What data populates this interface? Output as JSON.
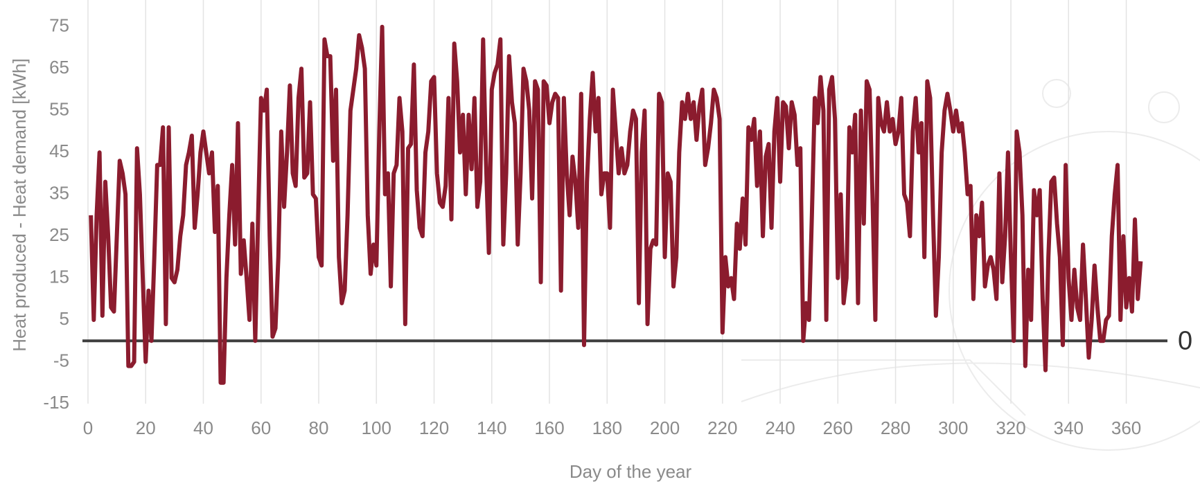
{
  "chart_data": {
    "type": "line",
    "xlabel": "Day of the year",
    "ylabel": "Heat produced - Heat demand [kWh]",
    "x": [
      1,
      2,
      3,
      4,
      5,
      6,
      7,
      8,
      9,
      10,
      11,
      12,
      13,
      14,
      15,
      16,
      17,
      18,
      19,
      20,
      21,
      22,
      23,
      24,
      25,
      26,
      27,
      28,
      29,
      30,
      31,
      32,
      33,
      34,
      35,
      36,
      37,
      38,
      39,
      40,
      41,
      42,
      43,
      44,
      45,
      46,
      47,
      48,
      49,
      50,
      51,
      52,
      53,
      54,
      55,
      56,
      57,
      58,
      59,
      60,
      61,
      62,
      63,
      64,
      65,
      66,
      67,
      68,
      69,
      70,
      71,
      72,
      73,
      74,
      75,
      76,
      77,
      78,
      79,
      80,
      81,
      82,
      83,
      84,
      85,
      86,
      87,
      88,
      89,
      90,
      91,
      92,
      93,
      94,
      95,
      96,
      97,
      98,
      99,
      100,
      101,
      102,
      103,
      104,
      105,
      106,
      107,
      108,
      109,
      110,
      111,
      112,
      113,
      114,
      115,
      116,
      117,
      118,
      119,
      120,
      121,
      122,
      123,
      124,
      125,
      126,
      127,
      128,
      129,
      130,
      131,
      132,
      133,
      134,
      135,
      136,
      137,
      138,
      139,
      140,
      141,
      142,
      143,
      144,
      145,
      146,
      147,
      148,
      149,
      150,
      151,
      152,
      153,
      154,
      155,
      156,
      157,
      158,
      159,
      160,
      161,
      162,
      163,
      164,
      165,
      166,
      167,
      168,
      169,
      170,
      171,
      172,
      173,
      174,
      175,
      176,
      177,
      178,
      179,
      180,
      181,
      182,
      183,
      184,
      185,
      186,
      187,
      188,
      189,
      190,
      191,
      192,
      193,
      194,
      195,
      196,
      197,
      198,
      199,
      200,
      201,
      202,
      203,
      204,
      205,
      206,
      207,
      208,
      209,
      210,
      211,
      212,
      213,
      214,
      215,
      216,
      217,
      218,
      219,
      220,
      221,
      222,
      223,
      224,
      225,
      226,
      227,
      228,
      229,
      230,
      231,
      232,
      233,
      234,
      235,
      236,
      237,
      238,
      239,
      240,
      241,
      242,
      243,
      244,
      245,
      246,
      247,
      248,
      249,
      250,
      251,
      252,
      253,
      254,
      255,
      256,
      257,
      258,
      259,
      260,
      261,
      262,
      263,
      264,
      265,
      266,
      267,
      268,
      269,
      270,
      271,
      272,
      273,
      274,
      275,
      276,
      277,
      278,
      279,
      280,
      281,
      282,
      283,
      284,
      285,
      286,
      287,
      288,
      289,
      290,
      291,
      292,
      293,
      294,
      295,
      296,
      297,
      298,
      299,
      300,
      301,
      302,
      303,
      304,
      305,
      306,
      307,
      308,
      309,
      310,
      311,
      312,
      313,
      314,
      315,
      316,
      317,
      318,
      319,
      320,
      321,
      322,
      323,
      324,
      325,
      326,
      327,
      328,
      329,
      330,
      331,
      332,
      333,
      334,
      335,
      336,
      337,
      338,
      339,
      340,
      341,
      342,
      343,
      344,
      345,
      346,
      347,
      348,
      349,
      350,
      351,
      352,
      353,
      354,
      355,
      356,
      357,
      358,
      359,
      360,
      361,
      362,
      363,
      364,
      365
    ],
    "series": [
      {
        "color": "#8b1c2e",
        "values": [
          30,
          5,
          30,
          45,
          6,
          38,
          25,
          8,
          7,
          25,
          43,
          40,
          35,
          -6,
          -6,
          -5,
          46,
          35,
          15,
          -5,
          12,
          0,
          20,
          42,
          42,
          51,
          4,
          51,
          15,
          14,
          17,
          25,
          30,
          42,
          45,
          49,
          27,
          35,
          45,
          50,
          45,
          40,
          45,
          26,
          37,
          -10,
          -10,
          15,
          30,
          42,
          23,
          52,
          16,
          24,
          15,
          5,
          28,
          0,
          30,
          58,
          55,
          60,
          25,
          1,
          3,
          20,
          50,
          32,
          45,
          61,
          40,
          37,
          58,
          65,
          39,
          40,
          57,
          35,
          34,
          20,
          18,
          72,
          68,
          68,
          43,
          60,
          20,
          9,
          12,
          30,
          55,
          60,
          65,
          73,
          70,
          65,
          30,
          16,
          23,
          18,
          50,
          75,
          35,
          40,
          13,
          40,
          42,
          58,
          50,
          4,
          46,
          47,
          66,
          36,
          27,
          25,
          45,
          50,
          62,
          63,
          40,
          33,
          32,
          37,
          58,
          29,
          71,
          62,
          45,
          54,
          35,
          54,
          41,
          58,
          32,
          38,
          72,
          43,
          21,
          60,
          64,
          66,
          72,
          23,
          40,
          68,
          57,
          52,
          23,
          40,
          65,
          62,
          55,
          34,
          62,
          60,
          14,
          62,
          61,
          52,
          57,
          59,
          58,
          12,
          58,
          40,
          30,
          44,
          38,
          27,
          59,
          -1,
          38,
          53,
          64,
          50,
          58,
          35,
          40,
          40,
          27,
          60,
          50,
          40,
          46,
          40,
          42,
          50,
          55,
          53,
          9,
          45,
          55,
          4,
          22,
          24,
          23,
          59,
          57,
          20,
          40,
          38,
          13,
          20,
          45,
          57,
          53,
          59,
          53,
          57,
          48,
          56,
          60,
          42,
          46,
          52,
          60,
          58,
          53,
          2,
          20,
          13,
          15,
          10,
          28,
          22,
          34,
          23,
          51,
          48,
          53,
          37,
          50,
          25,
          44,
          47,
          27,
          50,
          58,
          38,
          57,
          56,
          46,
          57,
          54,
          42,
          46,
          0,
          9,
          5,
          30,
          58,
          52,
          63,
          55,
          5,
          60,
          63,
          53,
          15,
          35,
          9,
          15,
          51,
          45,
          54,
          9,
          55,
          28,
          62,
          60,
          35,
          5,
          58,
          52,
          50,
          57,
          50,
          53,
          47,
          50,
          58,
          35,
          33,
          25,
          50,
          58,
          45,
          52,
          20,
          62,
          58,
          30,
          6,
          20,
          45,
          55,
          59,
          55,
          50,
          55,
          50,
          52,
          45,
          35,
          37,
          10,
          30,
          25,
          33,
          13,
          18,
          20,
          17,
          10,
          40,
          14,
          25,
          45,
          20,
          0,
          50,
          45,
          30,
          -6,
          17,
          5,
          36,
          30,
          36,
          10,
          -7,
          20,
          38,
          39,
          28,
          20,
          -1,
          42,
          15,
          5,
          17,
          8,
          5,
          23,
          10,
          -4,
          5,
          18,
          8,
          0,
          0,
          5,
          6,
          25,
          35,
          42,
          5,
          25,
          8,
          15,
          7,
          29,
          10,
          19
        ]
      }
    ],
    "hline": 0,
    "xlim": [
      0,
      375
    ],
    "xticks": [
      0,
      20,
      40,
      60,
      80,
      100,
      120,
      140,
      160,
      180,
      200,
      220,
      240,
      260,
      280,
      300,
      320,
      340,
      360
    ],
    "ylim": [
      -15,
      80
    ],
    "yticks": [
      -15,
      -5,
      5,
      15,
      25,
      35,
      45,
      55,
      65,
      75
    ],
    "grid": true
  }
}
